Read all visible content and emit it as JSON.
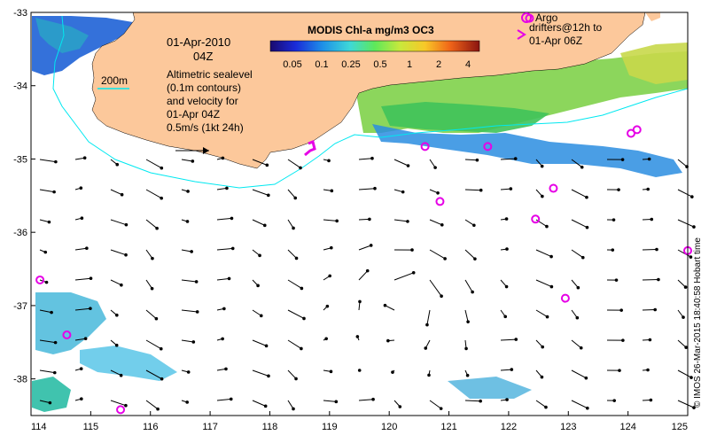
{
  "map": {
    "date_line": "01-Apr-2010",
    "time_line": "04Z",
    "contour_label": "200m",
    "altimetry_lines": [
      "Altimetric sealevel",
      "(0.1m contours)",
      "and velocity for",
      "01-Apr 04Z"
    ],
    "scale_label": "0.5m/s (1kt 24h)",
    "colorbar_title": "MODIS Chl-a mg/m3 OC3",
    "colorbar_ticks": [
      "0.05",
      "0.1",
      "0.25",
      "0.5",
      "1",
      "2",
      "4"
    ],
    "argo_label": "Argo",
    "drifter_lines": [
      "drifters@12h to",
      "01-Apr 06Z"
    ],
    "credit": "© IMOS 26-Mar-2015 18:40:58 Hobart time",
    "lon_ticks": [
      "114",
      "115",
      "116",
      "117",
      "118",
      "119",
      "120",
      "121",
      "122",
      "123",
      "124",
      "125"
    ],
    "lat_ticks": [
      "-33",
      "-34",
      "-35",
      "-36",
      "-37",
      "-38"
    ],
    "extent": {
      "lon_min": 114,
      "lon_max": 125,
      "lat_min": -38.5,
      "lat_max": -33
    },
    "colors": {
      "land": "#fcc89b",
      "contour": "#00e8f0",
      "argo": "#e600e6",
      "arrow": "#000000"
    },
    "argo_floats": [
      {
        "lon": 122.35,
        "lat": -33.08
      },
      {
        "lon": 120.6,
        "lat": -34.83
      },
      {
        "lon": 121.65,
        "lat": -34.83
      },
      {
        "lon": 124.05,
        "lat": -34.65
      },
      {
        "lon": 124.15,
        "lat": -34.6
      },
      {
        "lon": 122.75,
        "lat": -35.4
      },
      {
        "lon": 120.85,
        "lat": -35.58
      },
      {
        "lon": 122.45,
        "lat": -35.82
      },
      {
        "lon": 125.0,
        "lat": -36.25
      },
      {
        "lon": 114.15,
        "lat": -36.65
      },
      {
        "lon": 122.95,
        "lat": -36.9
      },
      {
        "lon": 114.6,
        "lat": -37.4
      },
      {
        "lon": 115.5,
        "lat": -38.42
      }
    ]
  }
}
